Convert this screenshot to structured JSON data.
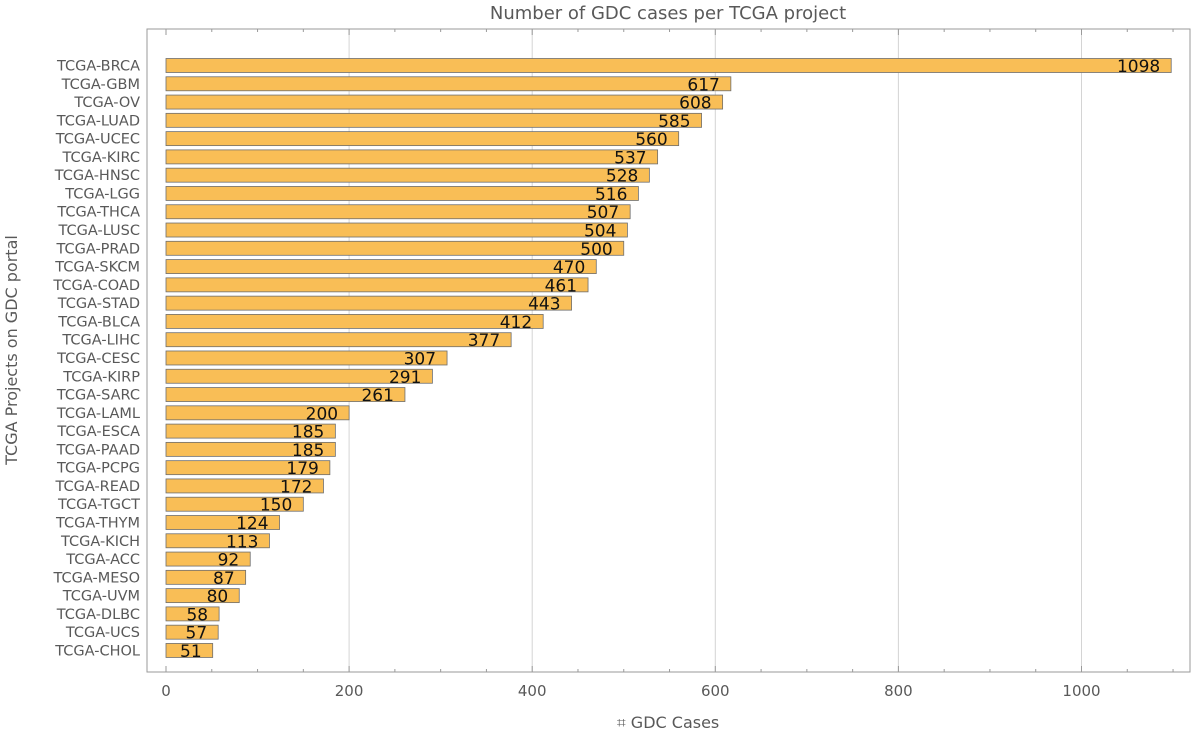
{
  "chart_data": {
    "type": "bar",
    "orientation": "horizontal",
    "title": "Number of GDC cases per TCGA project",
    "xlabel": "⌗ GDC Cases",
    "ylabel": "TCGA Projects on GDC portal",
    "xlim": [
      0,
      1100
    ],
    "xticks": [
      0,
      200,
      400,
      600,
      800,
      1000
    ],
    "grid": "vertical",
    "bar_color": "#f9be56",
    "categories": [
      "TCGA-BRCA",
      "TCGA-GBM",
      "TCGA-OV",
      "TCGA-LUAD",
      "TCGA-UCEC",
      "TCGA-KIRC",
      "TCGA-HNSC",
      "TCGA-LGG",
      "TCGA-THCA",
      "TCGA-LUSC",
      "TCGA-PRAD",
      "TCGA-SKCM",
      "TCGA-COAD",
      "TCGA-STAD",
      "TCGA-BLCA",
      "TCGA-LIHC",
      "TCGA-CESC",
      "TCGA-KIRP",
      "TCGA-SARC",
      "TCGA-LAML",
      "TCGA-ESCA",
      "TCGA-PAAD",
      "TCGA-PCPG",
      "TCGA-READ",
      "TCGA-TGCT",
      "TCGA-THYM",
      "TCGA-KICH",
      "TCGA-ACC",
      "TCGA-MESO",
      "TCGA-UVM",
      "TCGA-DLBC",
      "TCGA-UCS",
      "TCGA-CHOL"
    ],
    "values": [
      1098,
      617,
      608,
      585,
      560,
      537,
      528,
      516,
      507,
      504,
      500,
      470,
      461,
      443,
      412,
      377,
      307,
      291,
      261,
      200,
      185,
      185,
      179,
      172,
      150,
      124,
      113,
      92,
      87,
      80,
      58,
      57,
      51
    ]
  }
}
